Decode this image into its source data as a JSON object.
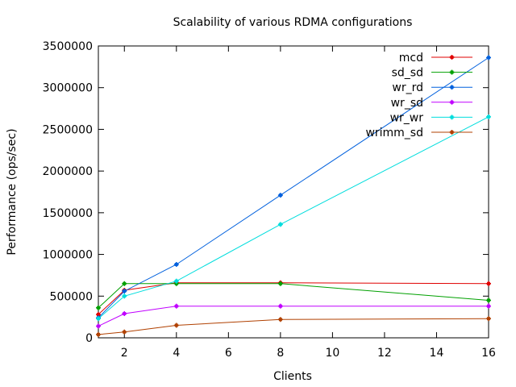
{
  "chart_data": {
    "type": "line",
    "title": "Scalability of various RDMA configurations",
    "xlabel": "Clients",
    "ylabel": "Performance (ops/sec)",
    "xlim": [
      1,
      16
    ],
    "ylim": [
      0,
      3500000
    ],
    "xticks": [
      2,
      4,
      6,
      8,
      10,
      12,
      14,
      16
    ],
    "yticks": [
      0,
      500000,
      1000000,
      1500000,
      2000000,
      2500000,
      3000000,
      3500000
    ],
    "grid": false,
    "legend_position": "top-right",
    "series": [
      {
        "name": "mcd",
        "color": "#e00000",
        "x": [
          1,
          2,
          4,
          8,
          16
        ],
        "y": [
          280000,
          570000,
          660000,
          660000,
          650000
        ]
      },
      {
        "name": "sd_sd",
        "color": "#00a000",
        "x": [
          1,
          2,
          4,
          8,
          16
        ],
        "y": [
          360000,
          650000,
          650000,
          650000,
          450000
        ]
      },
      {
        "name": "wr_rd",
        "color": "#0060dd",
        "x": [
          1,
          2,
          4,
          8,
          16
        ],
        "y": [
          240000,
          560000,
          880000,
          1710000,
          3360000
        ]
      },
      {
        "name": "wr_sd",
        "color": "#c000ff",
        "x": [
          1,
          2,
          4,
          8,
          16
        ],
        "y": [
          140000,
          290000,
          380000,
          380000,
          380000
        ]
      },
      {
        "name": "wr_wr",
        "color": "#00dddd",
        "x": [
          1,
          2,
          4,
          8,
          16
        ],
        "y": [
          230000,
          500000,
          680000,
          1360000,
          2650000
        ]
      },
      {
        "name": "wrimm_sd",
        "color": "#b04000",
        "x": [
          1,
          2,
          4,
          8,
          16
        ],
        "y": [
          40000,
          70000,
          150000,
          220000,
          230000
        ]
      }
    ]
  }
}
